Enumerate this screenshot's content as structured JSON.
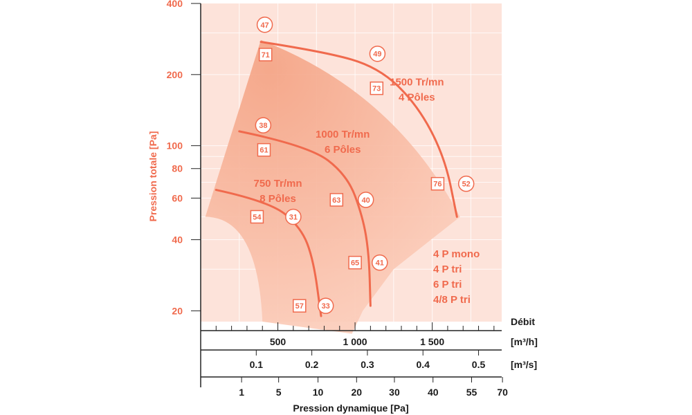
{
  "colors": {
    "accent": "#f06a4d",
    "panel": "#fde3da",
    "region_light": "#fbcbb8",
    "region_dark": "#f4a283",
    "grid": "#ffffff",
    "axis": "#222222",
    "text_dark": "#1a1a1a"
  },
  "chart_data": {
    "type": "line",
    "title": "",
    "y_axis": {
      "label": "Pression totale [Pa]",
      "scale": "log",
      "range": [
        18,
        400
      ],
      "ticks": [
        {
          "value": 400,
          "label": "400"
        },
        {
          "value": 200,
          "label": "200"
        },
        {
          "value": 100,
          "label": "100"
        },
        {
          "value": 80,
          "label": "80"
        },
        {
          "value": 60,
          "label": "60"
        },
        {
          "value": 40,
          "label": "40"
        },
        {
          "value": 20,
          "label": "20"
        }
      ]
    },
    "x_axis": {
      "label": "Débit",
      "unit": "[m³/h]",
      "range": [
        0,
        1950
      ],
      "ticks": [
        {
          "value": 500,
          "label": "500"
        },
        {
          "value": 1000,
          "label": "1 000"
        },
        {
          "value": 1500,
          "label": "1 500"
        }
      ]
    },
    "x_axis_m3s": {
      "unit": "[m³/s]",
      "ticks": [
        {
          "value": 0.1,
          "label": "0.1"
        },
        {
          "value": 0.2,
          "label": "0.2"
        },
        {
          "value": 0.3,
          "label": "0.3"
        },
        {
          "value": 0.4,
          "label": "0.4"
        },
        {
          "value": 0.5,
          "label": "0.5"
        }
      ]
    },
    "x_axis_dyn": {
      "label": "Pression dynamique [Pa]",
      "ticks": [
        {
          "value": 1,
          "label": "1",
          "flow": 265
        },
        {
          "value": 5,
          "label": "5",
          "flow": 505
        },
        {
          "value": 10,
          "label": "10",
          "flow": 760
        },
        {
          "value": 20,
          "label": "20",
          "flow": 1010
        },
        {
          "value": 30,
          "label": "30",
          "flow": 1255
        },
        {
          "value": 40,
          "label": "40",
          "flow": 1505
        },
        {
          "value": 55,
          "label": "55",
          "flow": 1755
        },
        {
          "value": 70,
          "label": "70",
          "flow": 1955
        }
      ]
    },
    "envelope": [
      [
        30,
        50
      ],
      [
        390,
        280
      ],
      [
        1250,
        170
      ],
      [
        1680,
        50
      ],
      [
        1250,
        30
      ],
      [
        1050,
        20
      ],
      [
        980,
        16
      ],
      [
        400,
        18
      ],
      [
        370,
        50
      ]
    ],
    "series": [
      {
        "name": "1500 Tr/mn 4 Pôles",
        "points": [
          [
            390,
            275
          ],
          [
            800,
            250
          ],
          [
            1150,
            215
          ],
          [
            1400,
            150
          ],
          [
            1580,
            90
          ],
          [
            1660,
            50
          ]
        ]
      },
      {
        "name": "1000 Tr/mn 6 Pôles",
        "points": [
          [
            250,
            115
          ],
          [
            700,
            100
          ],
          [
            950,
            75
          ],
          [
            1050,
            50
          ],
          [
            1090,
            35
          ],
          [
            1100,
            21
          ]
        ]
      },
      {
        "name": "750 Tr/mn 8 Pôles",
        "points": [
          [
            100,
            65
          ],
          [
            450,
            58
          ],
          [
            650,
            45
          ],
          [
            730,
            33
          ],
          [
            780,
            19
          ]
        ]
      }
    ],
    "curve_labels": [
      {
        "line1": "1500 Tr/mn",
        "line2": "4 Pôles",
        "x": 1400,
        "y": 180
      },
      {
        "line1": "1000 Tr/mn",
        "line2": "6 Pôles",
        "x": 920,
        "y": 108
      },
      {
        "line1": "750 Tr/mn",
        "line2": "8 Pôles",
        "x": 500,
        "y": 67
      }
    ],
    "noise_squares": [
      {
        "label": "71",
        "x": 420,
        "y": 243
      },
      {
        "label": "73",
        "x": 1140,
        "y": 175
      },
      {
        "label": "61",
        "x": 410,
        "y": 96
      },
      {
        "label": "76",
        "x": 1535,
        "y": 69
      },
      {
        "label": "63",
        "x": 880,
        "y": 59
      },
      {
        "label": "54",
        "x": 365,
        "y": 50
      },
      {
        "label": "65",
        "x": 1000,
        "y": 32
      },
      {
        "label": "57",
        "x": 640,
        "y": 21
      }
    ],
    "noise_circles": [
      {
        "label": "47",
        "x": 415,
        "y": 325
      },
      {
        "label": "49",
        "x": 1145,
        "y": 245
      },
      {
        "label": "38",
        "x": 405,
        "y": 122
      },
      {
        "label": "52",
        "x": 1720,
        "y": 69
      },
      {
        "label": "40",
        "x": 1070,
        "y": 59
      },
      {
        "label": "31",
        "x": 600,
        "y": 50
      },
      {
        "label": "41",
        "x": 1160,
        "y": 32
      },
      {
        "label": "33",
        "x": 810,
        "y": 21
      }
    ],
    "legend_lines": [
      "4 P mono",
      "4 P tri",
      "6 P tri",
      "4/8 P tri"
    ]
  }
}
